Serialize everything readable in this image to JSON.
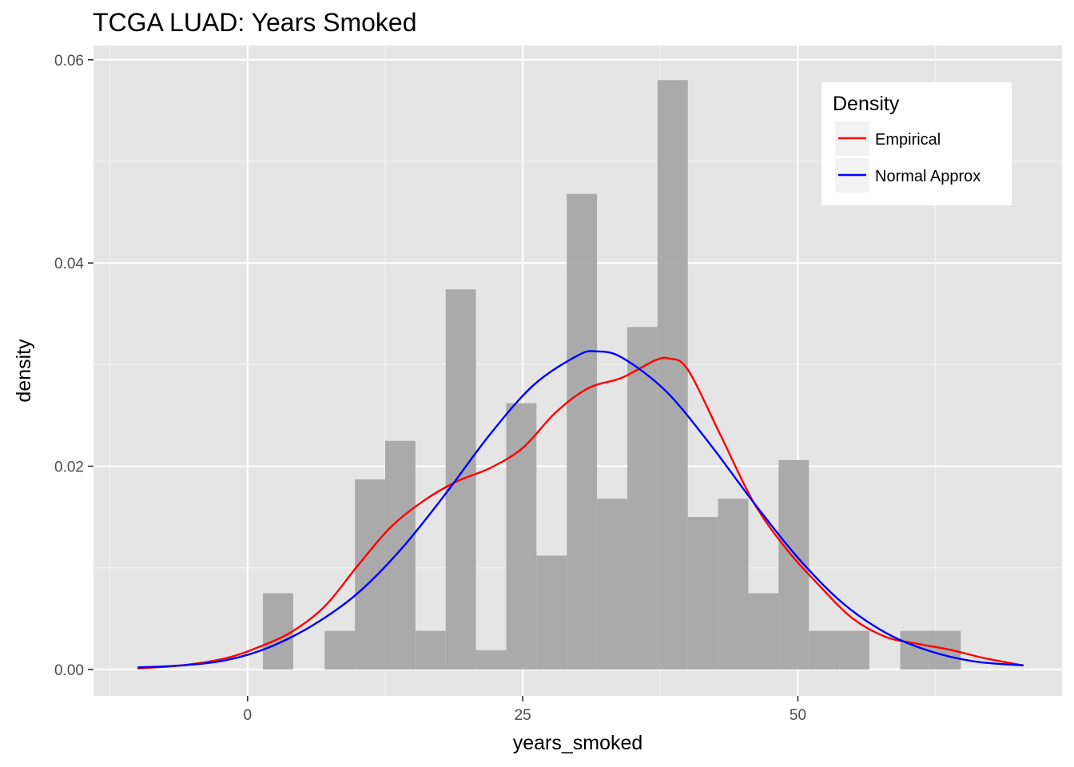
{
  "chart_data": {
    "type": "bar",
    "title": "TCGA LUAD: Years Smoked",
    "xlabel": "years_smoked",
    "ylabel": "density",
    "xlim": [
      -14,
      74
    ],
    "ylim": [
      -0.0026,
      0.0614
    ],
    "x_ticks": [
      0,
      25,
      50
    ],
    "x_tick_labels": [
      "0",
      "25",
      "50"
    ],
    "y_ticks": [
      0,
      0.02,
      0.04,
      0.06
    ],
    "y_tick_labels": [
      "0.00",
      "0.02",
      "0.04",
      "0.06"
    ],
    "grid": true,
    "background": "#e5e5e5",
    "histogram": {
      "bin_width": 2.75,
      "bins": [
        {
          "x0": 1.4,
          "x1": 4.15,
          "density": 0.0075
        },
        {
          "x0": 7.0,
          "x1": 9.75,
          "density": 0.0038
        },
        {
          "x0": 9.75,
          "x1": 12.5,
          "density": 0.0187
        },
        {
          "x0": 12.5,
          "x1": 15.25,
          "density": 0.0225
        },
        {
          "x0": 15.25,
          "x1": 18.0,
          "density": 0.0038
        },
        {
          "x0": 18.0,
          "x1": 20.75,
          "density": 0.0374
        },
        {
          "x0": 20.75,
          "x1": 23.5,
          "density": 0.0019
        },
        {
          "x0": 23.5,
          "x1": 26.25,
          "density": 0.0262
        },
        {
          "x0": 26.25,
          "x1": 29.0,
          "density": 0.0112
        },
        {
          "x0": 29.0,
          "x1": 31.75,
          "density": 0.0468
        },
        {
          "x0": 31.75,
          "x1": 34.5,
          "density": 0.0168
        },
        {
          "x0": 34.5,
          "x1": 37.25,
          "density": 0.0337
        },
        {
          "x0": 37.25,
          "x1": 40.0,
          "density": 0.058
        },
        {
          "x0": 40.0,
          "x1": 42.75,
          "density": 0.015
        },
        {
          "x0": 42.75,
          "x1": 45.5,
          "density": 0.0168
        },
        {
          "x0": 45.5,
          "x1": 48.25,
          "density": 0.0075
        },
        {
          "x0": 48.25,
          "x1": 51.0,
          "density": 0.0206
        },
        {
          "x0": 51.0,
          "x1": 53.75,
          "density": 0.0038
        },
        {
          "x0": 53.75,
          "x1": 56.5,
          "density": 0.0038
        },
        {
          "x0": 59.3,
          "x1": 62.0,
          "density": 0.0038
        },
        {
          "x0": 62.0,
          "x1": 64.8,
          "density": 0.0038
        }
      ],
      "color": "#a6a6a6"
    },
    "series": [
      {
        "name": "Empirical",
        "color": "#ff0000",
        "x": [
          -10,
          -6,
          -2,
          1,
          4,
          7,
          10,
          13,
          16,
          19,
          22,
          25,
          28,
          31,
          34,
          37,
          38.3,
          40,
          43,
          46,
          49,
          52,
          55,
          58,
          61,
          64,
          67,
          70.5
        ],
        "y": [
          0.0001,
          0.0004,
          0.0011,
          0.0022,
          0.0037,
          0.0062,
          0.0102,
          0.014,
          0.0166,
          0.0185,
          0.0198,
          0.0218,
          0.0253,
          0.0277,
          0.0287,
          0.0304,
          0.0306,
          0.0295,
          0.023,
          0.0164,
          0.0118,
          0.0082,
          0.005,
          0.0032,
          0.0025,
          0.0019,
          0.0011,
          0.0004
        ]
      },
      {
        "name": "Normal Approx",
        "color": "#0000ff",
        "x": [
          -10,
          -6,
          -2,
          2,
          6,
          10,
          14,
          18,
          22,
          26,
          30,
          31.7,
          34,
          38,
          42,
          46,
          50,
          54,
          58,
          62,
          66,
          70.5
        ],
        "y": [
          0.0002,
          0.0004,
          0.0009,
          0.0022,
          0.0044,
          0.0075,
          0.0119,
          0.0173,
          0.0231,
          0.028,
          0.0309,
          0.0313,
          0.0307,
          0.0274,
          0.0222,
          0.0164,
          0.011,
          0.0066,
          0.0036,
          0.0018,
          0.0008,
          0.0004
        ]
      }
    ],
    "legend": {
      "title": "Density",
      "position": "top-right",
      "entries": [
        "Empirical",
        "Normal Approx"
      ]
    }
  }
}
